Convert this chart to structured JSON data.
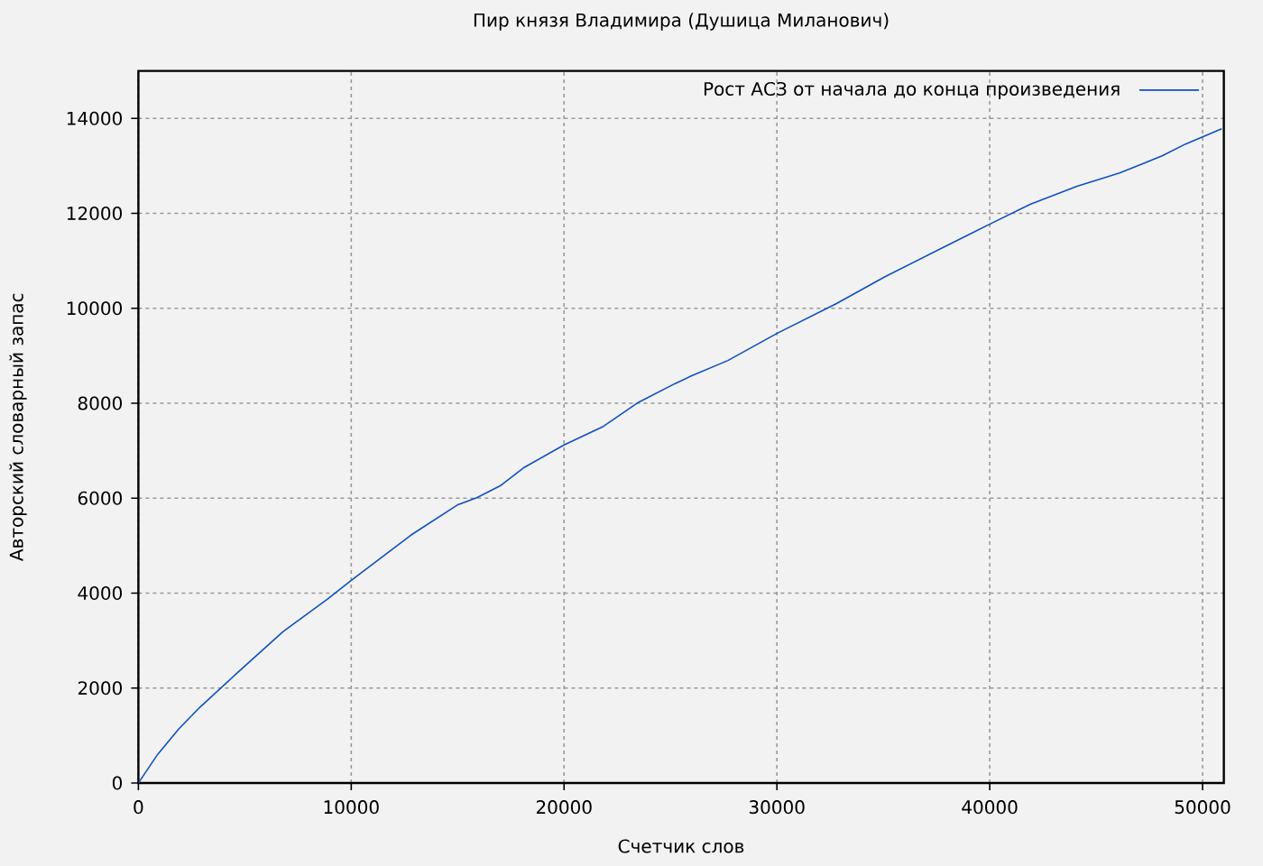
{
  "chart_data": {
    "type": "line",
    "title": "Пир князя Владимира (Душица Миланович)",
    "xlabel": "Счетчик слов",
    "ylabel": "Авторский словарный запас",
    "x": [
      0,
      900,
      1900,
      2900,
      4600,
      6800,
      8900,
      10000,
      12800,
      15000,
      15900,
      17000,
      18100,
      20000,
      21800,
      23500,
      25200,
      26000,
      27700,
      30000,
      32800,
      35100,
      37900,
      39900,
      41900,
      44100,
      46100,
      48100,
      49200,
      50900
    ],
    "series": [
      {
        "name": "Рост АСЗ от начала до конца произведения",
        "color": "#1050c0",
        "values": [
          0,
          600,
          1140,
          1600,
          2300,
          3190,
          3880,
          4270,
          5220,
          5860,
          6010,
          6260,
          6640,
          7120,
          7500,
          8020,
          8410,
          8580,
          8900,
          9470,
          10100,
          10670,
          11300,
          11750,
          12190,
          12570,
          12850,
          13210,
          13460,
          13780
        ]
      }
    ],
    "xlim": [
      0,
      51000
    ],
    "ylim": [
      0,
      15000
    ],
    "xticks": [
      0,
      10000,
      20000,
      30000,
      40000,
      50000
    ],
    "yticks": [
      0,
      2000,
      4000,
      6000,
      8000,
      10000,
      12000,
      14000
    ],
    "grid": true,
    "legend": "top right",
    "marker": "none",
    "line_style": "solid"
  }
}
